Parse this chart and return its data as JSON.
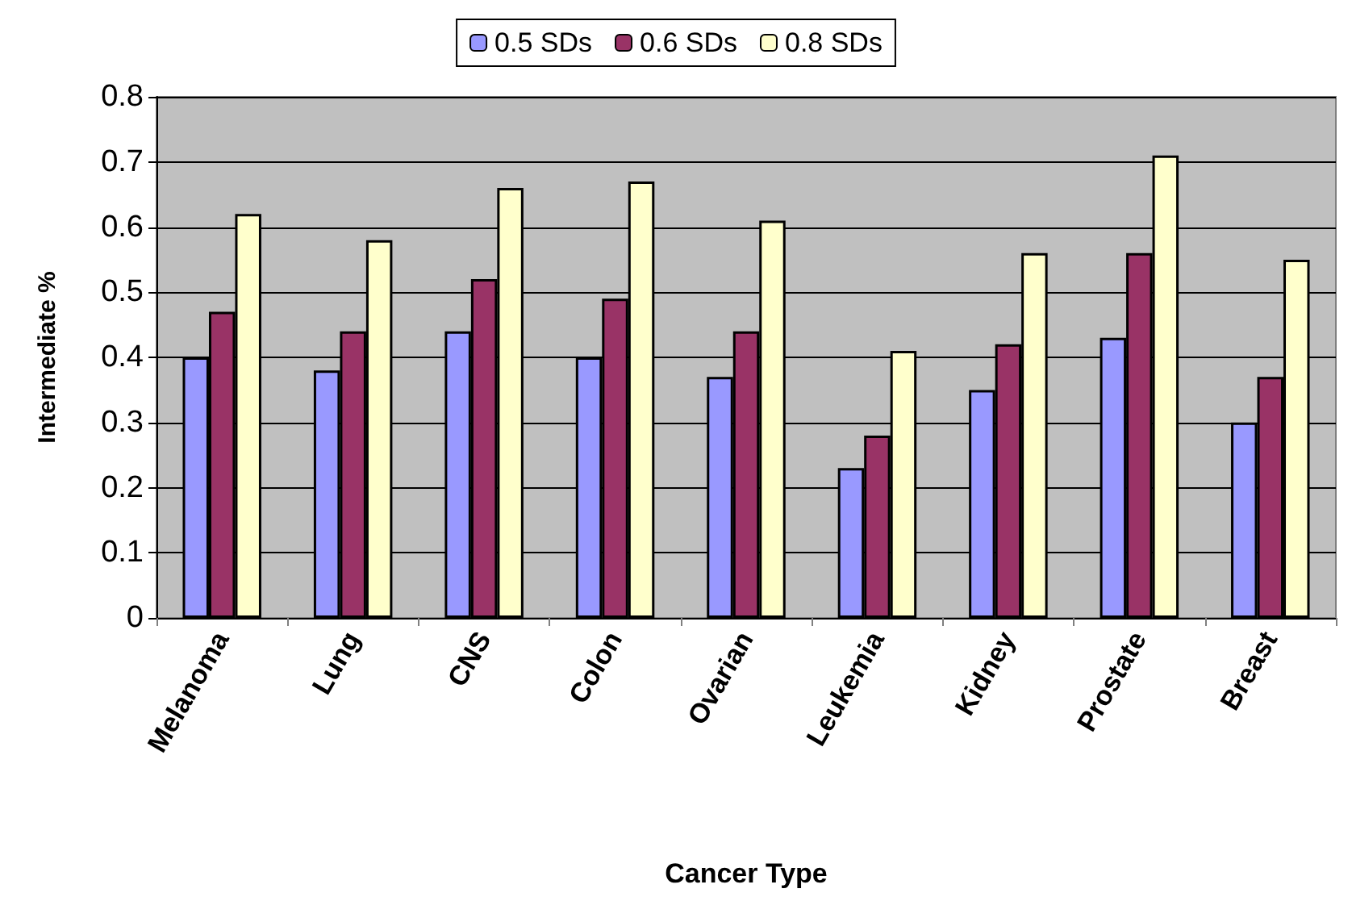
{
  "chart_data": {
    "type": "bar",
    "xlabel": "Cancer Type",
    "ylabel": "Intermediate %",
    "categories": [
      "Melanoma",
      "Lung",
      "CNS",
      "Colon",
      "Ovarian",
      "Leukemia",
      "Kidney",
      "Prostate",
      "Breast"
    ],
    "series": [
      {
        "name": "0.5 SDs",
        "color": "#9999ff",
        "values": [
          0.4,
          0.38,
          0.44,
          0.4,
          0.37,
          0.23,
          0.35,
          0.43,
          0.3
        ]
      },
      {
        "name": "0.6 SDs",
        "color": "#993366",
        "values": [
          0.47,
          0.44,
          0.52,
          0.49,
          0.44,
          0.28,
          0.42,
          0.56,
          0.37
        ]
      },
      {
        "name": "0.8 SDs",
        "color": "#ffffcc",
        "values": [
          0.62,
          0.58,
          0.66,
          0.67,
          0.61,
          0.41,
          0.56,
          0.71,
          0.55
        ]
      }
    ],
    "ylim": [
      0,
      0.8
    ],
    "yticks": [
      0,
      0.1,
      0.2,
      0.3,
      0.4,
      0.5,
      0.6,
      0.7,
      0.8
    ],
    "grid": "y",
    "legend": "top"
  }
}
